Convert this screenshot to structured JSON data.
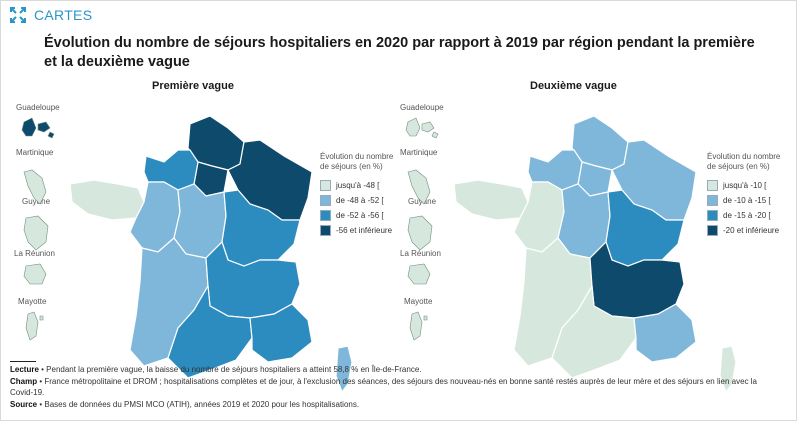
{
  "header": {
    "tag": "CARTES"
  },
  "title": "Évolution du nombre de séjours hospitaliers en 2020 par rapport à 2019 par région pendant la première et la deuxième vague",
  "colors": {
    "c1": "#d6e8dd",
    "c2": "#7fb7db",
    "c3": "#2c8cc0",
    "c4": "#0d4a6b",
    "border": "#ffffff",
    "accent": "#2b95c8"
  },
  "dom_labels": [
    "Guadeloupe",
    "Martinique",
    "Guyane",
    "La Réunion",
    "Mayotte"
  ],
  "maps": [
    {
      "title": "Première vague",
      "legend": {
        "title": "Évolution du nombre de séjours (en %)",
        "items": [
          "jusqu'à -48 [",
          "de -48 à -52 [",
          "de -52 à -56 [",
          "-56 et inférieure"
        ]
      },
      "regions": {
        "hauts_de_france": 4,
        "ile_de_france": 4,
        "grand_est": 4,
        "normandie": 3,
        "bretagne": 1,
        "pays_de_la_loire": 2,
        "centre_val_de_loire": 2,
        "bourgogne_franche_comte": 3,
        "nouvelle_aquitaine": 2,
        "auvergne_rhone_alpes": 3,
        "occitanie": 3,
        "provence_alpes_cote_d_azur": 3,
        "corse": 2
      },
      "dom": {
        "guadeloupe": 4,
        "martinique": 1,
        "guyane": 1,
        "la_reunion": 1,
        "mayotte": 1
      }
    },
    {
      "title": "Deuxième vague",
      "legend": {
        "title": "Évolution du nombre de séjours (en %)",
        "items": [
          "jusqu'à -10 [",
          "de -10 à -15 [",
          "de -15 à -20 [",
          "-20 et inférieure"
        ]
      },
      "regions": {
        "hauts_de_france": 2,
        "ile_de_france": 2,
        "grand_est": 2,
        "normandie": 2,
        "bretagne": 1,
        "pays_de_la_loire": 1,
        "centre_val_de_loire": 2,
        "bourgogne_franche_comte": 3,
        "nouvelle_aquitaine": 1,
        "auvergne_rhone_alpes": 4,
        "occitanie": 1,
        "provence_alpes_cote_d_azur": 2,
        "corse": 1
      },
      "dom": {
        "guadeloupe": 1,
        "martinique": 1,
        "guyane": 1,
        "la_reunion": 1,
        "mayotte": 1
      }
    }
  ],
  "notes": {
    "lecture_label": "Lecture",
    "lecture": "Pendant la première vague, la baisse du nombre de séjours hospitaliers a atteint 58,8 % en Île-de-France.",
    "champ_label": "Champ",
    "champ": "France métropolitaine et DROM ; hospitalisations complètes et de jour, à l'exclusion des séances, des séjours des nouveau-nés en bonne santé restés auprès de leur mère et des séjours en lien avec la Covid-19.",
    "source_label": "Source",
    "source": "Bases de données du PMSI MCO (ATIH), années 2019 et 2020 pour les hospitalisations."
  }
}
